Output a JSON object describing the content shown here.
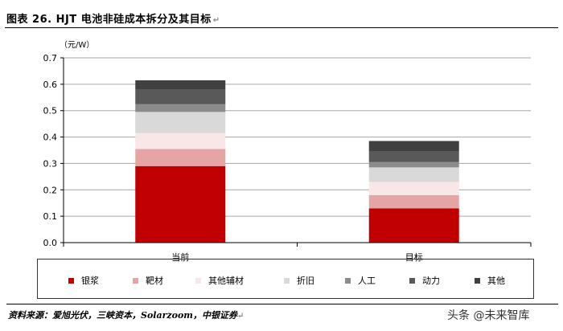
{
  "header": {
    "title": "图表 26. HJT 电池非硅成本拆分及其目标",
    "title_mark": "↵"
  },
  "chart_data": {
    "type": "bar",
    "stacked": true,
    "unit_label": "（元/W）",
    "categories": [
      "当前",
      "目标"
    ],
    "ylim": [
      0,
      0.7
    ],
    "yticks": [
      "0.0",
      "0.1",
      "0.2",
      "0.3",
      "0.4",
      "0.5",
      "0.6",
      "0.7"
    ],
    "grid": true,
    "legend_position": "bottom",
    "series": [
      {
        "name": "银浆",
        "color": "#c00000",
        "values": [
          0.29,
          0.13
        ]
      },
      {
        "name": "靶材",
        "color": "#e6a5a5",
        "values": [
          0.065,
          0.05
        ]
      },
      {
        "name": "其他辅材",
        "color": "#f9e6e6",
        "values": [
          0.06,
          0.05
        ]
      },
      {
        "name": "折旧",
        "color": "#d9d9d9",
        "values": [
          0.08,
          0.055
        ]
      },
      {
        "name": "人工",
        "color": "#8c8c8c",
        "values": [
          0.03,
          0.02
        ]
      },
      {
        "name": "动力",
        "color": "#595959",
        "values": [
          0.055,
          0.04
        ]
      },
      {
        "name": "其他",
        "color": "#404040",
        "values": [
          0.035,
          0.04
        ]
      }
    ]
  },
  "footer": {
    "source": "资料来源：爱旭光伏，三峡资本，Solarzoom，中银证券",
    "source_mark": "↵",
    "watermark": "头条 @未来智库"
  }
}
